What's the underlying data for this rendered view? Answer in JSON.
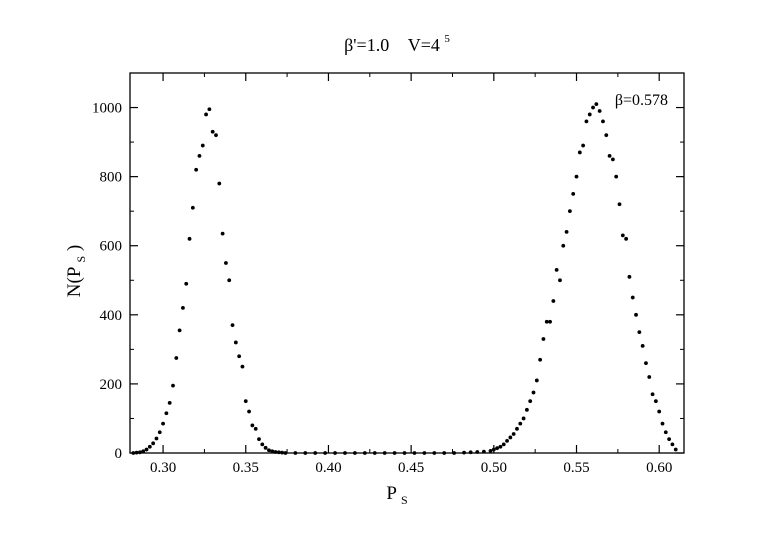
{
  "chart_data": {
    "type": "scatter",
    "title_parts": {
      "beta_prime": "β'=1.0",
      "volume_base": "V=4",
      "volume_exp": "5"
    },
    "annotation": "β=0.578",
    "xlabel": {
      "main": "P",
      "sub": "S"
    },
    "ylabel": {
      "main": "N(P",
      "sub": "S",
      "close": ")"
    },
    "xlim": [
      0.28,
      0.615
    ],
    "ylim": [
      0,
      1100
    ],
    "x_ticks": [
      0.3,
      0.35,
      0.4,
      0.45,
      0.5,
      0.55,
      0.6
    ],
    "x_tick_labels": [
      "0.30",
      "0.35",
      "0.40",
      "0.45",
      "0.50",
      "0.55",
      "0.60"
    ],
    "y_ticks": [
      0,
      200,
      400,
      600,
      800,
      1000
    ],
    "y_tick_labels": [
      "0",
      "200",
      "400",
      "600",
      "800",
      "1000"
    ],
    "grid": false,
    "marker_color": "#000000",
    "series": [
      {
        "points": [
          [
            0.282,
            0
          ],
          [
            0.284,
            1
          ],
          [
            0.286,
            2
          ],
          [
            0.288,
            5
          ],
          [
            0.29,
            10
          ],
          [
            0.292,
            18
          ],
          [
            0.294,
            28
          ],
          [
            0.296,
            42
          ],
          [
            0.298,
            60
          ],
          [
            0.3,
            85
          ],
          [
            0.302,
            115
          ],
          [
            0.304,
            145
          ],
          [
            0.306,
            195
          ],
          [
            0.308,
            275
          ],
          [
            0.31,
            355
          ],
          [
            0.312,
            420
          ],
          [
            0.314,
            490
          ],
          [
            0.316,
            620
          ],
          [
            0.318,
            710
          ],
          [
            0.32,
            820
          ],
          [
            0.322,
            860
          ],
          [
            0.324,
            890
          ],
          [
            0.326,
            980
          ],
          [
            0.328,
            995
          ],
          [
            0.33,
            930
          ],
          [
            0.332,
            920
          ],
          [
            0.334,
            780
          ],
          [
            0.336,
            635
          ],
          [
            0.338,
            550
          ],
          [
            0.34,
            500
          ],
          [
            0.342,
            370
          ],
          [
            0.344,
            320
          ],
          [
            0.346,
            280
          ],
          [
            0.348,
            250
          ],
          [
            0.35,
            150
          ],
          [
            0.352,
            120
          ],
          [
            0.354,
            80
          ],
          [
            0.356,
            70
          ],
          [
            0.358,
            40
          ],
          [
            0.36,
            25
          ],
          [
            0.362,
            15
          ],
          [
            0.364,
            8
          ],
          [
            0.366,
            5
          ],
          [
            0.368,
            3
          ],
          [
            0.37,
            2
          ],
          [
            0.372,
            1
          ],
          [
            0.374,
            0
          ],
          [
            0.38,
            0
          ],
          [
            0.386,
            0
          ],
          [
            0.392,
            0
          ],
          [
            0.398,
            0
          ],
          [
            0.404,
            0
          ],
          [
            0.41,
            0
          ],
          [
            0.416,
            0
          ],
          [
            0.422,
            0
          ],
          [
            0.428,
            0
          ],
          [
            0.434,
            0
          ],
          [
            0.44,
            0
          ],
          [
            0.446,
            0
          ],
          [
            0.452,
            0
          ],
          [
            0.458,
            0
          ],
          [
            0.464,
            0
          ],
          [
            0.47,
            0
          ],
          [
            0.476,
            0
          ],
          [
            0.482,
            1
          ],
          [
            0.486,
            2
          ],
          [
            0.49,
            3
          ],
          [
            0.494,
            4
          ],
          [
            0.498,
            6
          ],
          [
            0.5,
            10
          ],
          [
            0.502,
            14
          ],
          [
            0.504,
            18
          ],
          [
            0.506,
            25
          ],
          [
            0.508,
            35
          ],
          [
            0.51,
            45
          ],
          [
            0.512,
            55
          ],
          [
            0.514,
            70
          ],
          [
            0.516,
            85
          ],
          [
            0.518,
            100
          ],
          [
            0.52,
            125
          ],
          [
            0.522,
            150
          ],
          [
            0.524,
            175
          ],
          [
            0.526,
            210
          ],
          [
            0.528,
            270
          ],
          [
            0.53,
            330
          ],
          [
            0.532,
            380
          ],
          [
            0.534,
            380
          ],
          [
            0.536,
            440
          ],
          [
            0.538,
            530
          ],
          [
            0.54,
            500
          ],
          [
            0.542,
            600
          ],
          [
            0.544,
            640
          ],
          [
            0.546,
            700
          ],
          [
            0.548,
            750
          ],
          [
            0.55,
            800
          ],
          [
            0.552,
            870
          ],
          [
            0.554,
            890
          ],
          [
            0.556,
            960
          ],
          [
            0.558,
            980
          ],
          [
            0.56,
            1000
          ],
          [
            0.562,
            1010
          ],
          [
            0.564,
            990
          ],
          [
            0.566,
            960
          ],
          [
            0.568,
            920
          ],
          [
            0.57,
            860
          ],
          [
            0.572,
            850
          ],
          [
            0.574,
            800
          ],
          [
            0.576,
            720
          ],
          [
            0.578,
            630
          ],
          [
            0.58,
            620
          ],
          [
            0.582,
            510
          ],
          [
            0.584,
            450
          ],
          [
            0.586,
            400
          ],
          [
            0.588,
            350
          ],
          [
            0.59,
            310
          ],
          [
            0.592,
            260
          ],
          [
            0.594,
            220
          ],
          [
            0.596,
            170
          ],
          [
            0.598,
            150
          ],
          [
            0.6,
            120
          ],
          [
            0.602,
            85
          ],
          [
            0.604,
            60
          ],
          [
            0.606,
            40
          ],
          [
            0.608,
            25
          ],
          [
            0.61,
            10
          ]
        ]
      }
    ]
  }
}
